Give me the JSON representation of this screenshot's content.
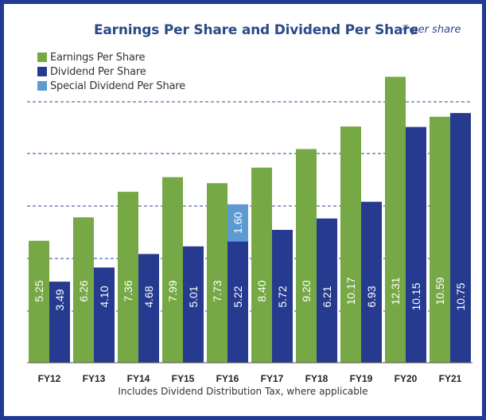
{
  "header": {
    "title": "Earnings Per Share and Dividend Per Share",
    "unit": "₹ per share"
  },
  "footnote": "Includes Dividend Distribution Tax, where applicable",
  "colors": {
    "frame": "#233a93",
    "eps": "#76a845",
    "dps": "#263b8f",
    "special": "#5d9ad2",
    "grid": "#2b4a88",
    "title": "#2b4a88"
  },
  "chart_data": {
    "type": "bar",
    "title": "Earnings Per Share and Dividend Per Share",
    "ylabel": "₹ per share",
    "categories": [
      "FY12",
      "FY13",
      "FY14",
      "FY15",
      "FY16",
      "FY17",
      "FY18",
      "FY19",
      "FY20",
      "FY21"
    ],
    "series": [
      {
        "name": "Earnings Per Share",
        "color": "#76a845",
        "values": [
          5.25,
          6.26,
          7.36,
          7.99,
          7.73,
          8.4,
          9.2,
          10.17,
          12.31,
          10.59
        ]
      },
      {
        "name": "Dividend Per Share",
        "color": "#263b8f",
        "values": [
          3.49,
          4.1,
          4.68,
          5.01,
          5.22,
          5.72,
          6.21,
          6.93,
          10.15,
          10.75
        ]
      },
      {
        "name": "Special Dividend Per Share",
        "color": "#5d9ad2",
        "values": [
          null,
          null,
          null,
          null,
          1.6,
          null,
          null,
          null,
          null,
          null
        ],
        "stacked_on": "Dividend Per Share"
      }
    ],
    "data_labels": {
      "Earnings Per Share": [
        "5.25",
        "6.26",
        "7.36",
        "7.99",
        "7.73",
        "8.40",
        "9.20",
        "10.17",
        "12.31",
        "10.59"
      ],
      "Dividend Per Share": [
        "3.49",
        "4.10",
        "4.68",
        "5.01",
        "5.22",
        "5.72",
        "6.21",
        "6.93",
        "10.15",
        "10.75"
      ],
      "Special Dividend Per Share": [
        null,
        null,
        null,
        null,
        "1.60",
        null,
        null,
        null,
        null,
        null
      ]
    },
    "grid": true,
    "grid_style": "dashed",
    "legend_position": "top-left"
  }
}
